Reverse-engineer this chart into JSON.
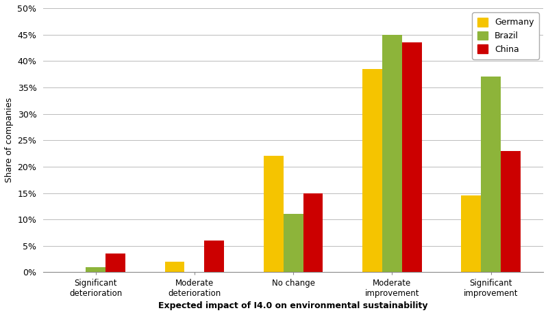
{
  "categories": [
    "Significant\ndeterioration",
    "Moderate\ndeterioration",
    "No change",
    "Moderate\nimprovement",
    "Significant\nimprovement"
  ],
  "series": {
    "Germany": [
      0.0,
      2.0,
      22.0,
      38.5,
      14.5
    ],
    "Brazil": [
      1.0,
      0.0,
      11.0,
      45.0,
      37.0
    ],
    "China": [
      3.5,
      6.0,
      15.0,
      43.5,
      23.0
    ]
  },
  "colors": {
    "Germany": "#F5C400",
    "Brazil": "#8DB43A",
    "China": "#CC0000"
  },
  "ylim": [
    0,
    50
  ],
  "yticks": [
    0,
    5,
    10,
    15,
    20,
    25,
    30,
    35,
    40,
    45,
    50
  ],
  "ylabel": "Share of companies",
  "xlabel": "Expected impact of I4.0 on environmental sustainability",
  "series_names": [
    "Germany",
    "Brazil",
    "China"
  ],
  "bar_width": 0.2,
  "background_color": "#FFFFFF",
  "grid_color": "#BBBBBB",
  "figsize": [
    8.0,
    4.61
  ],
  "dpi": 100
}
